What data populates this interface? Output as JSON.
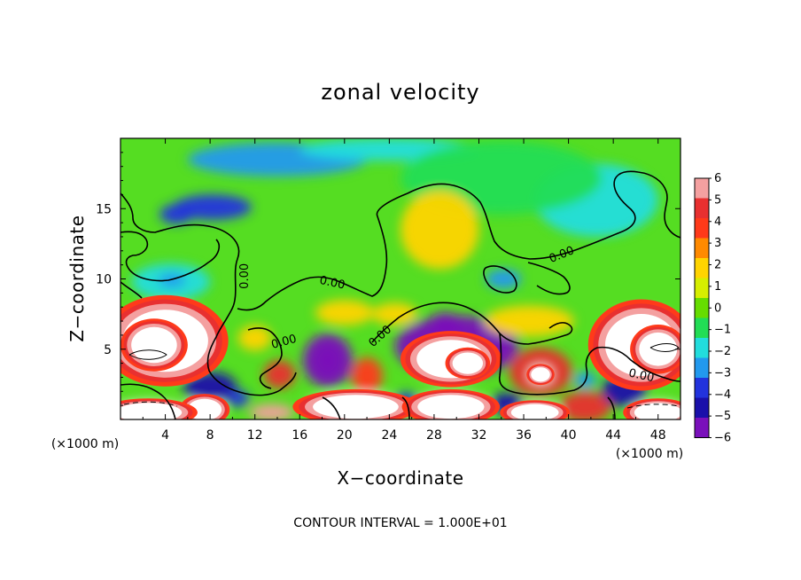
{
  "chart_data": {
    "type": "heatmap",
    "title": "zonal velocity",
    "xlabel": "X−coordinate",
    "ylabel": "Z−coordinate",
    "x_unit_left": "(×1000 m)",
    "x_unit_right": "(×1000 m)",
    "xlim": [
      0,
      50
    ],
    "ylim": [
      0,
      20
    ],
    "xticks": [
      4,
      8,
      12,
      16,
      20,
      24,
      28,
      32,
      36,
      40,
      44,
      48
    ],
    "yticks": [
      5,
      10,
      15
    ],
    "xtick_labels": [
      "4",
      "8",
      "12",
      "16",
      "20",
      "24",
      "28",
      "32",
      "36",
      "40",
      "44",
      "48"
    ],
    "ytick_labels": [
      "5",
      "10",
      "15"
    ],
    "colorbar": {
      "levels": [
        6,
        5,
        4,
        3,
        2,
        1,
        0,
        -1,
        -2,
        -3,
        -4,
        -5,
        -6
      ],
      "labels": [
        "6",
        "5",
        "4",
        "3",
        "2",
        "1",
        "0",
        "−1",
        "−2",
        "−3",
        "−4",
        "−5",
        "−6"
      ],
      "colors": [
        "#f4a0a0",
        "#e83030",
        "#ff3a1a",
        "#ff8a00",
        "#ffd400",
        "#d6ee00",
        "#66dd00",
        "#22dd55",
        "#22dddd",
        "#2299ee",
        "#2233dd",
        "#1a10aa",
        "#7a10bb"
      ]
    },
    "contour_label": "0.00",
    "contour_labels": [
      {
        "text": "0.00",
        "x": 11.1,
        "z": 10.2,
        "angle": -90
      },
      {
        "text": "0.00",
        "x": 18.9,
        "z": 9.7,
        "angle": 12
      },
      {
        "text": "0.00",
        "x": 14.6,
        "z": 5.5,
        "angle": -15
      },
      {
        "text": "0.00",
        "x": 23.2,
        "z": 5.9,
        "angle": -42
      },
      {
        "text": "0.00",
        "x": 39.4,
        "z": 11.7,
        "angle": -22
      },
      {
        "text": "0.00",
        "x": 46.5,
        "z": 3.1,
        "angle": 12
      }
    ],
    "blobs": [
      {
        "x": 4.0,
        "z": 5.6,
        "rx": 4.5,
        "rz": 2.6,
        "v": 9
      },
      {
        "x": 3.0,
        "z": 5.3,
        "rx": 2.4,
        "rz": 1.5,
        "v": 9
      },
      {
        "x": 46.5,
        "z": 5.3,
        "rx": 3.8,
        "rz": 2.6,
        "v": 9
      },
      {
        "x": 48.0,
        "z": 5.0,
        "rx": 2.0,
        "rz": 1.4,
        "v": 8
      },
      {
        "x": 29.5,
        "z": 4.3,
        "rx": 3.6,
        "rz": 1.6,
        "v": 8
      },
      {
        "x": 31.0,
        "z": 4.0,
        "rx": 1.6,
        "rz": 0.9,
        "v": 8
      },
      {
        "x": 30.0,
        "z": 5.2,
        "rx": 5.5,
        "rz": 2.2,
        "v": -5.5
      },
      {
        "x": 29.0,
        "z": 6.8,
        "rx": 1.5,
        "rz": 0.8,
        "v": -6.5
      },
      {
        "x": 37.5,
        "z": 3.4,
        "rx": 2.8,
        "rz": 1.7,
        "v": 5.5
      },
      {
        "x": 37.5,
        "z": 3.2,
        "rx": 1.0,
        "rz": 0.6,
        "v": 8
      },
      {
        "x": 18.5,
        "z": 4.2,
        "rx": 2.2,
        "rz": 1.9,
        "v": -5.5
      },
      {
        "x": 18.5,
        "z": 4.2,
        "rx": 0.9,
        "rz": 0.9,
        "v": -6.5
      },
      {
        "x": 14.2,
        "z": 3.2,
        "rx": 1.4,
        "rz": 1.0,
        "v": 5
      },
      {
        "x": 22.0,
        "z": 3.1,
        "rx": 1.4,
        "rz": 1.3,
        "v": 4.5
      },
      {
        "x": 21.0,
        "z": 0.9,
        "rx": 4.5,
        "rz": 1.0,
        "v": 8
      },
      {
        "x": 29.5,
        "z": 0.9,
        "rx": 3.5,
        "rz": 1.0,
        "v": 8
      },
      {
        "x": 37.0,
        "z": 0.5,
        "rx": 2.5,
        "rz": 0.7,
        "v": 8
      },
      {
        "x": 41.5,
        "z": 0.9,
        "rx": 2.3,
        "rz": 1.1,
        "v": 5
      },
      {
        "x": 7.5,
        "z": 0.7,
        "rx": 1.8,
        "rz": 0.9,
        "v": 9
      },
      {
        "x": 13.5,
        "z": 0.5,
        "rx": 2.0,
        "rz": 0.6,
        "v": 6
      },
      {
        "x": 24.5,
        "z": 0.6,
        "rx": 1.5,
        "rz": 0.7,
        "v": 6
      },
      {
        "x": 2.5,
        "z": 0.5,
        "rx": 3.5,
        "rz": 0.8,
        "v": 8
      },
      {
        "x": 48.0,
        "z": 0.5,
        "rx": 2.5,
        "rz": 0.8,
        "v": 8
      },
      {
        "x": 8.0,
        "z": 2.3,
        "rx": 2.4,
        "rz": 1.1,
        "v": -4.5
      },
      {
        "x": 45.0,
        "z": 2.1,
        "rx": 2.0,
        "rz": 1.2,
        "v": -4.5
      },
      {
        "x": 34.5,
        "z": 1.1,
        "rx": 1.5,
        "rz": 0.8,
        "v": -4.5
      },
      {
        "x": 25.5,
        "z": 1.3,
        "rx": 1.2,
        "rz": 0.6,
        "v": -4
      },
      {
        "x": 10.5,
        "z": 1.5,
        "rx": 1.0,
        "rz": 0.6,
        "v": -3.5
      },
      {
        "x": 41.5,
        "z": 2.8,
        "rx": 1.0,
        "rz": 0.6,
        "v": -2.5
      },
      {
        "x": 8.2,
        "z": 15.1,
        "rx": 3.5,
        "rz": 0.9,
        "v": -4.2
      },
      {
        "x": 5.0,
        "z": 14.6,
        "rx": 1.5,
        "rz": 0.7,
        "v": -3.6
      },
      {
        "x": 14.0,
        "z": 18.5,
        "rx": 8.0,
        "rz": 1.2,
        "v": -2.8
      },
      {
        "x": 24.0,
        "z": 19.2,
        "rx": 8.0,
        "rz": 0.8,
        "v": -2.3
      },
      {
        "x": 42.5,
        "z": 15.6,
        "rx": 5.5,
        "rz": 2.6,
        "v": -1.9
      },
      {
        "x": 34.0,
        "z": 17.2,
        "rx": 9.0,
        "rz": 2.6,
        "v": -0.9
      },
      {
        "x": 4.5,
        "z": 9.8,
        "rx": 3.5,
        "rz": 1.3,
        "v": -2.0
      },
      {
        "x": 4.6,
        "z": 9.9,
        "rx": 1.2,
        "rz": 0.5,
        "v": -3.2
      },
      {
        "x": 34.2,
        "z": 10.0,
        "rx": 1.6,
        "rz": 0.7,
        "v": -2.6
      },
      {
        "x": 28.5,
        "z": 13.5,
        "rx": 3.5,
        "rz": 2.8,
        "v": 1.8
      },
      {
        "x": 20.0,
        "z": 7.6,
        "rx": 2.6,
        "rz": 0.9,
        "v": 2.2
      },
      {
        "x": 24.5,
        "z": 7.5,
        "rx": 2.0,
        "rz": 0.8,
        "v": 2.2
      },
      {
        "x": 36.5,
        "z": 7.0,
        "rx": 4.0,
        "rz": 1.1,
        "v": 2.2
      },
      {
        "x": 12.0,
        "z": 5.8,
        "rx": 1.5,
        "rz": 0.9,
        "v": 1.6
      }
    ]
  }
}
